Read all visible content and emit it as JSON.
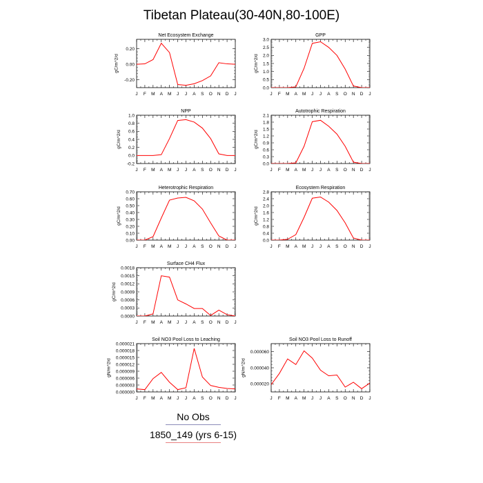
{
  "page": {
    "title": "Tibetan Plateau(30-40N,80-100E)"
  },
  "legend": {
    "obs_label": "No Obs",
    "obs_color": "#8a8ab8",
    "model_label": "1850_149 (yrs 6-15)",
    "model_color": "#e88080"
  },
  "line_color": "#ff0000",
  "chart_data": [
    {
      "type": "line",
      "title": "Net Ecosystem Exchange",
      "ylabel": "gC/m^2/d",
      "categories": [
        "J",
        "F",
        "M",
        "A",
        "M",
        "J",
        "J",
        "A",
        "S",
        "O",
        "N",
        "D",
        "J"
      ],
      "values": [
        0.0,
        0.005,
        0.06,
        0.27,
        0.15,
        -0.26,
        -0.27,
        -0.25,
        -0.21,
        -0.15,
        0.02,
        0.005,
        0.0
      ],
      "ylim": [
        -0.3,
        0.32
      ],
      "yticks": [
        -0.2,
        0.0,
        0.2
      ],
      "yticklabels": [
        "-0.20",
        "0.00",
        "0.20"
      ]
    },
    {
      "type": "line",
      "title": "GPP",
      "ylabel": "gC/m^2/d",
      "categories": [
        "J",
        "F",
        "M",
        "A",
        "M",
        "J",
        "J",
        "A",
        "S",
        "O",
        "N",
        "D",
        "J"
      ],
      "values": [
        0.0,
        0.0,
        0.0,
        0.05,
        1.2,
        2.75,
        2.85,
        2.5,
        2.0,
        1.15,
        0.1,
        0.0,
        0.0
      ],
      "ylim": [
        0,
        3.0
      ],
      "yticks": [
        0,
        0.5,
        1.0,
        1.5,
        2.0,
        2.5,
        3.0
      ],
      "yticklabels": [
        "0.0",
        "0.5",
        "1.0",
        "1.5",
        "2.0",
        "2.5",
        "3.0"
      ]
    },
    {
      "type": "line",
      "title": "NPP",
      "ylabel": "gC/m^2/d",
      "categories": [
        "J",
        "F",
        "M",
        "A",
        "M",
        "J",
        "J",
        "A",
        "S",
        "O",
        "N",
        "D",
        "J"
      ],
      "values": [
        0.0,
        0.0,
        0.0,
        0.02,
        0.42,
        0.87,
        0.89,
        0.83,
        0.68,
        0.42,
        0.04,
        0.0,
        0.0
      ],
      "ylim": [
        -0.2,
        1.0
      ],
      "yticks": [
        -0.2,
        0.0,
        0.2,
        0.4,
        0.6,
        0.8,
        1.0
      ],
      "yticklabels": [
        "-0.2",
        "0.0",
        "0.2",
        "0.4",
        "0.6",
        "0.8",
        "1.0"
      ]
    },
    {
      "type": "line",
      "title": "Autotrophic Respiration",
      "ylabel": "gC/m^2/d",
      "categories": [
        "J",
        "F",
        "M",
        "A",
        "M",
        "J",
        "J",
        "A",
        "S",
        "O",
        "N",
        "D",
        "J"
      ],
      "values": [
        0.0,
        0.0,
        0.0,
        0.03,
        0.75,
        1.82,
        1.88,
        1.62,
        1.28,
        0.75,
        0.06,
        0.0,
        0.0
      ],
      "ylim": [
        0,
        2.1
      ],
      "yticks": [
        0,
        0.3,
        0.6,
        0.9,
        1.2,
        1.5,
        1.8,
        2.1
      ],
      "yticklabels": [
        "0.0",
        "0.3",
        "0.6",
        "0.9",
        "1.2",
        "1.5",
        "1.8",
        "2.1"
      ]
    },
    {
      "type": "line",
      "title": "Heterotrophic Respiration",
      "ylabel": "gC/m^2/d",
      "categories": [
        "J",
        "F",
        "M",
        "A",
        "M",
        "J",
        "J",
        "A",
        "S",
        "O",
        "N",
        "D",
        "J"
      ],
      "values": [
        0.0,
        0.0,
        0.05,
        0.32,
        0.58,
        0.61,
        0.62,
        0.57,
        0.45,
        0.25,
        0.06,
        0.0,
        0.0
      ],
      "ylim": [
        0,
        0.7
      ],
      "yticks": [
        0,
        0.1,
        0.2,
        0.3,
        0.4,
        0.5,
        0.6,
        0.7
      ],
      "yticklabels": [
        "0.00",
        "0.10",
        "0.20",
        "0.30",
        "0.40",
        "0.50",
        "0.60",
        "0.70"
      ]
    },
    {
      "type": "line",
      "title": "Ecosystem Respiration",
      "ylabel": "gC/m^2/d",
      "categories": [
        "J",
        "F",
        "M",
        "A",
        "M",
        "J",
        "J",
        "A",
        "S",
        "O",
        "N",
        "D",
        "J"
      ],
      "values": [
        0.0,
        0.0,
        0.05,
        0.32,
        1.32,
        2.43,
        2.5,
        2.2,
        1.72,
        1.0,
        0.12,
        0.0,
        0.0
      ],
      "ylim": [
        0,
        2.8
      ],
      "yticks": [
        0,
        0.4,
        0.8,
        1.2,
        1.6,
        2.0,
        2.4,
        2.8
      ],
      "yticklabels": [
        "0.0",
        "0.4",
        "0.8",
        "1.2",
        "1.6",
        "2.0",
        "2.4",
        "2.8"
      ]
    },
    {
      "type": "line",
      "title": "Surface CH4 Flux",
      "ylabel": "gC/m^2/d",
      "categories": [
        "J",
        "F",
        "M",
        "A",
        "M",
        "J",
        "J",
        "A",
        "S",
        "O",
        "N",
        "D",
        "J"
      ],
      "values": [
        0.0,
        0.0,
        8e-05,
        0.0015,
        0.00145,
        0.0006,
        0.00045,
        0.00028,
        0.00028,
        2e-05,
        0.00022,
        5e-05,
        0.0
      ],
      "ylim": [
        0,
        0.0018
      ],
      "yticks": [
        0,
        0.0003,
        0.0006,
        0.0009,
        0.0012,
        0.0015,
        0.0018
      ],
      "yticklabels": [
        "0.0000",
        "0.0003",
        "0.0006",
        "0.0009",
        "0.0012",
        "0.0015",
        "0.0018"
      ]
    },
    {
      "type": "line",
      "title": "Soil NO3 Pool Loss to Leaching",
      "ylabel": "gN/m^2/d",
      "categories": [
        "J",
        "F",
        "M",
        "A",
        "M",
        "J",
        "J",
        "A",
        "S",
        "O",
        "N",
        "D",
        "J"
      ],
      "values": [
        1.3e-06,
        1e-06,
        5.8e-06,
        8.5e-06,
        4.2e-06,
        1e-06,
        1.8e-06,
        1.89e-05,
        6.5e-06,
        2.8e-06,
        2e-06,
        1.5e-06,
        1.3e-06
      ],
      "ylim": [
        0,
        2.1e-05
      ],
      "yticks": [
        0,
        3e-06,
        6e-06,
        9e-06,
        1.2e-05,
        1.5e-05,
        1.8e-05,
        2.1e-05
      ],
      "yticklabels": [
        "0.000000",
        "0.000003",
        "0.000006",
        "0.000009",
        "0.000012",
        "0.000015",
        "0.000018",
        "0.000021"
      ]
    },
    {
      "type": "line",
      "title": "Soil NO3 Pool Loss to Runoff",
      "ylabel": "gN/m^2/d",
      "categories": [
        "J",
        "F",
        "M",
        "A",
        "M",
        "J",
        "J",
        "A",
        "S",
        "O",
        "N",
        "D",
        "J"
      ],
      "values": [
        1.9e-05,
        3.3e-05,
        5.1e-05,
        4.4e-05,
        6.1e-05,
        5.2e-05,
        3.7e-05,
        3e-05,
        3.1e-05,
        1.6e-05,
        2.2e-05,
        1.4e-05,
        2.1e-05
      ],
      "ylim": [
        1e-05,
        7e-05
      ],
      "yticks": [
        2e-05,
        4e-05,
        6e-05
      ],
      "yticklabels": [
        "0.000020",
        "0.000040",
        "0.000060"
      ]
    }
  ]
}
